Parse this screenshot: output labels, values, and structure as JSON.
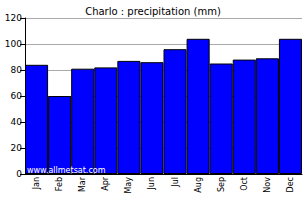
{
  "chart_data": {
    "type": "bar",
    "title": "Charlo : precipitation (mm)",
    "categories": [
      "Jan",
      "Feb",
      "Mar",
      "Apr",
      "May",
      "Jun",
      "Jul",
      "Aug",
      "Sep",
      "Oct",
      "Nov",
      "Dec"
    ],
    "values": [
      84,
      60,
      81,
      82,
      87,
      86,
      96,
      104,
      85,
      88,
      89,
      104
    ],
    "color": "#0000ff",
    "ylim": [
      0,
      120
    ],
    "yticks": [
      0,
      20,
      40,
      60,
      80,
      100,
      120
    ],
    "grid": true,
    "annotations": [
      "www.allmetsat.com"
    ]
  }
}
